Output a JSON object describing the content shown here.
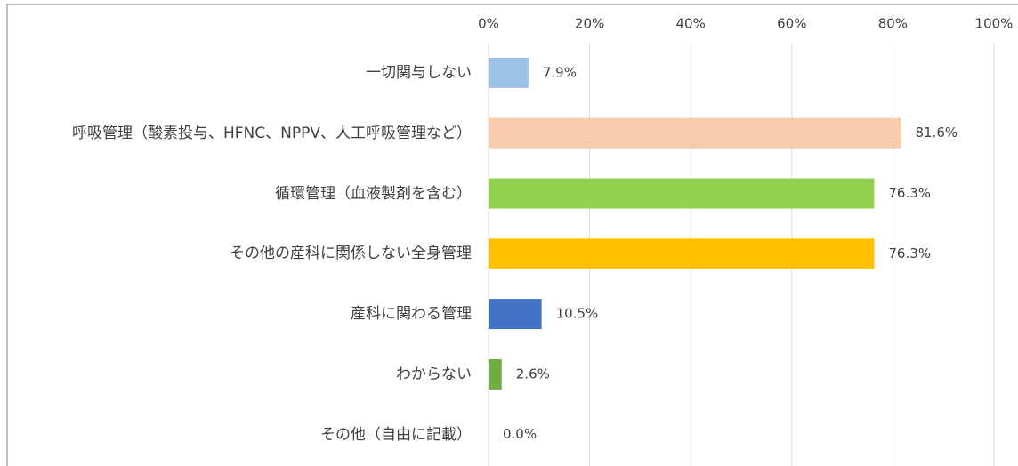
{
  "chart_data": {
    "type": "bar",
    "orientation": "horizontal",
    "categories": [
      "一切関与しない",
      "呼吸管理（酸素投与、HFNC、NPPV、人工呼吸管理など）",
      "循環管理（血液製剤を含む）",
      "その他の産科に関係しない全身管理",
      "産科に関わる管理",
      "わからない",
      "その他（自由に記載）"
    ],
    "values": [
      7.9,
      81.6,
      76.3,
      76.3,
      10.5,
      2.6,
      0.0
    ],
    "value_labels": [
      "7.9%",
      "81.6%",
      "76.3%",
      "76.3%",
      "10.5%",
      "2.6%",
      "0.0%"
    ],
    "colors": [
      "#9dc3e6",
      "#f8cbad",
      "#92d050",
      "#ffc000",
      "#4472c4",
      "#70ad47",
      "#a5a5a5"
    ],
    "xlim": [
      0,
      100
    ],
    "xticks": [
      {
        "value": 0,
        "label": "0%"
      },
      {
        "value": 20,
        "label": "20%"
      },
      {
        "value": 40,
        "label": "40%"
      },
      {
        "value": 60,
        "label": "60%"
      },
      {
        "value": 80,
        "label": "80%"
      },
      {
        "value": 100,
        "label": "100%"
      }
    ],
    "grid": true
  }
}
